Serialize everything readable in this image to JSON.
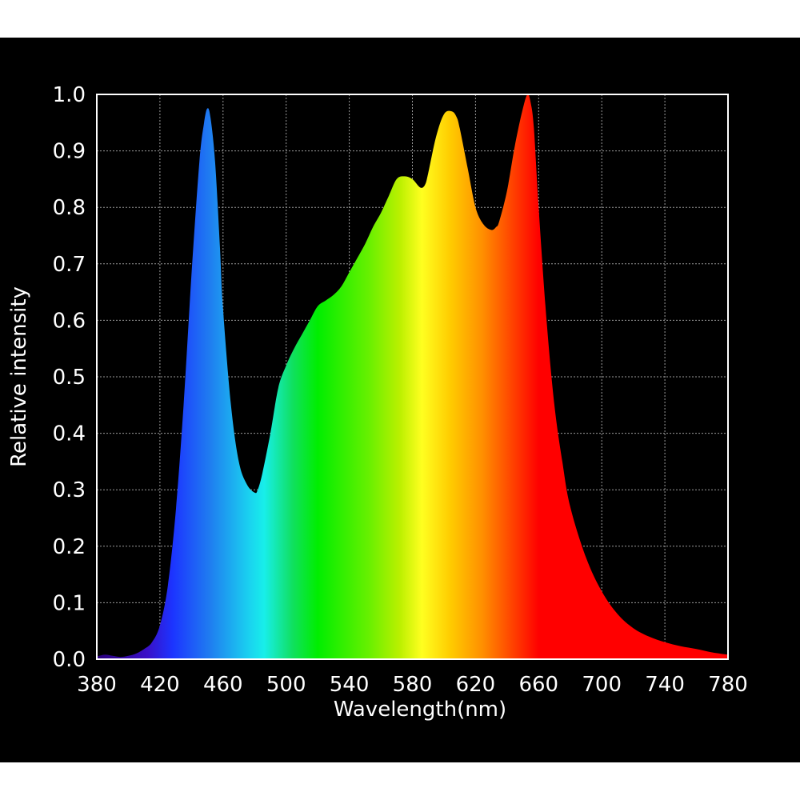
{
  "chart_data": {
    "type": "area",
    "title": "",
    "xlabel": "Wavelength(nm)",
    "ylabel": "Relative intensity",
    "xlim": [
      380,
      780
    ],
    "ylim": [
      0,
      1.0
    ],
    "x_ticks": [
      "380",
      "420",
      "460",
      "500",
      "540",
      "580",
      "620",
      "660",
      "700",
      "740",
      "780"
    ],
    "y_ticks": [
      "0.0",
      "0.1",
      "0.2",
      "0.3",
      "0.4",
      "0.5",
      "0.6",
      "0.7",
      "0.8",
      "0.9",
      "1.0"
    ],
    "grid": true,
    "legend": "none",
    "series": [
      {
        "x": [
          380,
          385,
          390,
          395,
          400,
          405,
          410,
          415,
          420,
          425,
          430,
          435,
          440,
          445,
          448,
          450,
          452,
          455,
          458,
          460,
          465,
          470,
          475,
          480,
          482,
          485,
          490,
          495,
          500,
          505,
          510,
          515,
          520,
          525,
          530,
          535,
          540,
          545,
          550,
          555,
          560,
          565,
          570,
          575,
          580,
          585,
          588,
          590,
          595,
          600,
          605,
          608,
          610,
          615,
          620,
          625,
          630,
          633,
          635,
          640,
          645,
          650,
          653,
          655,
          657,
          660,
          665,
          670,
          675,
          680,
          690,
          700,
          710,
          720,
          730,
          740,
          750,
          760,
          770,
          780
        ],
        "y": [
          0.005,
          0.008,
          0.006,
          0.004,
          0.006,
          0.01,
          0.018,
          0.03,
          0.06,
          0.13,
          0.26,
          0.45,
          0.68,
          0.88,
          0.95,
          0.975,
          0.96,
          0.88,
          0.73,
          0.62,
          0.45,
          0.35,
          0.31,
          0.295,
          0.3,
          0.33,
          0.4,
          0.48,
          0.52,
          0.55,
          0.575,
          0.6,
          0.625,
          0.635,
          0.645,
          0.66,
          0.685,
          0.71,
          0.735,
          0.765,
          0.79,
          0.82,
          0.85,
          0.855,
          0.85,
          0.835,
          0.84,
          0.86,
          0.925,
          0.965,
          0.97,
          0.96,
          0.94,
          0.87,
          0.8,
          0.77,
          0.76,
          0.765,
          0.775,
          0.83,
          0.91,
          0.975,
          1.0,
          0.985,
          0.94,
          0.8,
          0.6,
          0.45,
          0.35,
          0.27,
          0.18,
          0.12,
          0.08,
          0.055,
          0.04,
          0.03,
          0.023,
          0.018,
          0.012,
          0.008
        ]
      }
    ]
  }
}
